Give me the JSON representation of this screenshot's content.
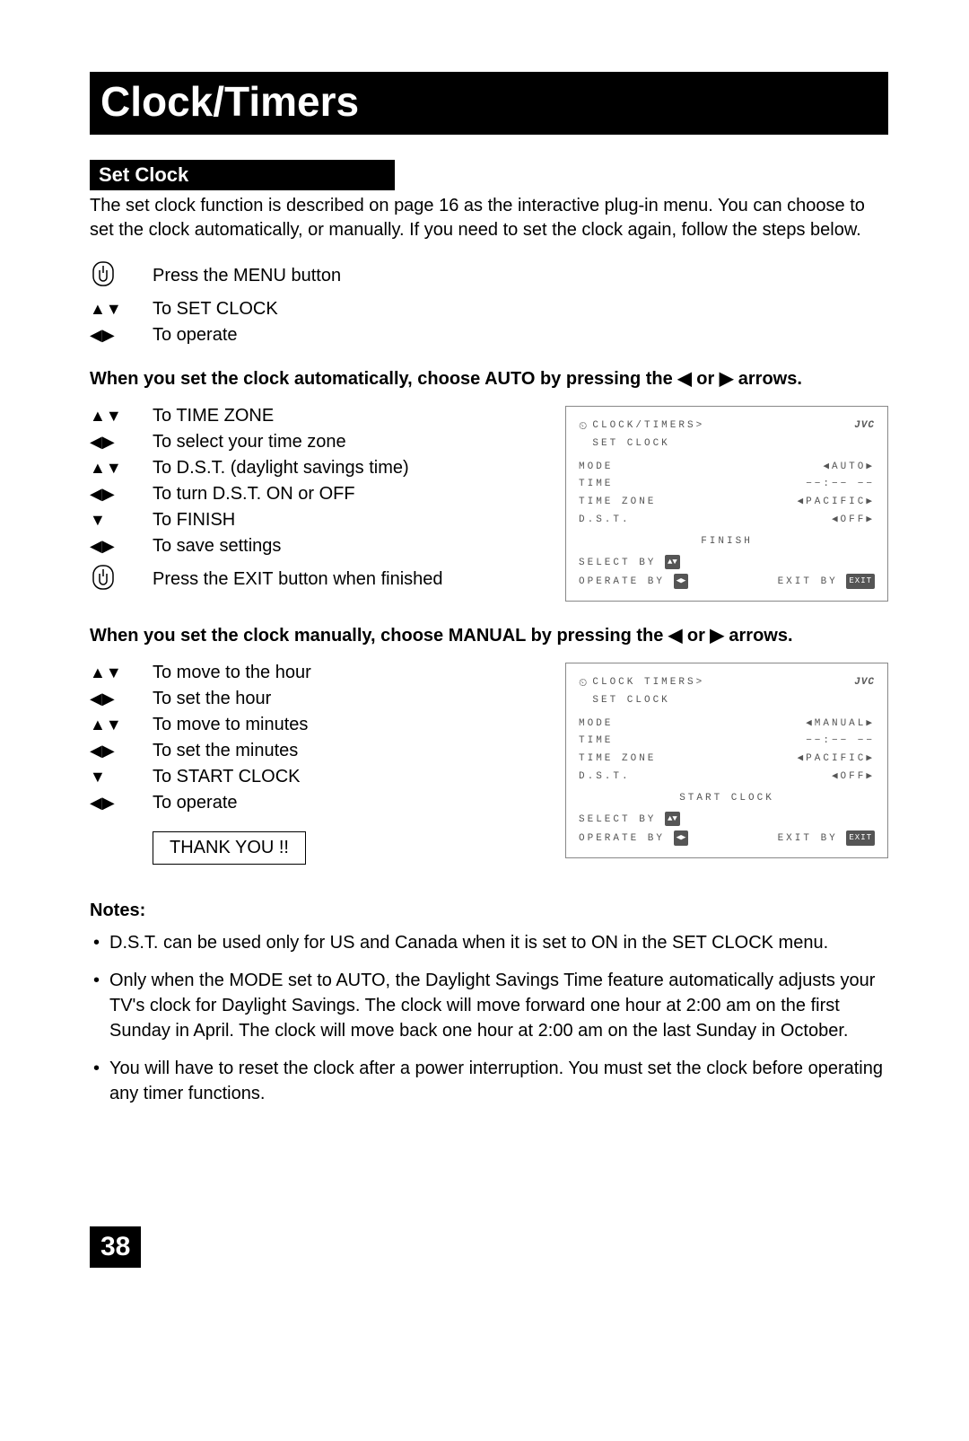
{
  "title": "Clock/Timers",
  "section": "Set Clock",
  "intro": "The set clock function is described on page 16 as the interactive plug-in menu. You can choose to set the clock automatically, or manually. If you need to set the clock again, follow the steps below.",
  "initial_steps": [
    {
      "icon": "hand",
      "text_pre": "Press the M",
      "text_sc": "ENU",
      "text_post": " button"
    },
    {
      "icon": "updown",
      "text": "To SET CLOCK"
    },
    {
      "icon": "leftright",
      "text": "To operate"
    }
  ],
  "auto_heading": "When you set the clock automatically, choose AUTO by pressing the ◀ or ▶ arrows.",
  "auto_steps": [
    {
      "icon": "updown",
      "text": "To TIME ZONE"
    },
    {
      "icon": "leftright",
      "text": "To select your time zone"
    },
    {
      "icon": "updown",
      "text": "To D.S.T. (daylight savings time)"
    },
    {
      "icon": "leftright",
      "text": "To turn D.S.T. ON or OFF"
    },
    {
      "icon": "down",
      "text": "To FINISH"
    },
    {
      "icon": "leftright",
      "text": "To save settings"
    },
    {
      "icon": "hand",
      "text_pre": "Press the E",
      "text_sc": "XIT",
      "text_post": " button when finished"
    }
  ],
  "manual_heading": "When you set the clock manually, choose MANUAL by pressing the ◀ or ▶ arrows.",
  "manual_steps": [
    {
      "icon": "updown",
      "text": "To move to the hour"
    },
    {
      "icon": "leftright",
      "text": "To set the hour"
    },
    {
      "icon": "updown",
      "text": "To move to minutes"
    },
    {
      "icon": "leftright",
      "text": "To set the minutes"
    },
    {
      "icon": "down",
      "text": "To START CLOCK"
    },
    {
      "icon": "leftright",
      "text": "To operate"
    }
  ],
  "thank_you": "THANK YOU !!",
  "osd1": {
    "breadcrumb": "CLOCK/TIMERS>",
    "subtitle": "SET CLOCK",
    "brand": "JVC",
    "rows": [
      {
        "label": "MODE",
        "value": "◀AUTO▶"
      },
      {
        "label": "TIME",
        "value": "−−:−− −−"
      },
      {
        "label": "TIME ZONE",
        "value": "◀PACIFIC▶"
      },
      {
        "label": "D.S.T.",
        "value": "◀OFF▶"
      }
    ],
    "center": "FINISH",
    "select": "SELECT  BY",
    "operate": "OPERATE BY",
    "exit": "EXIT BY"
  },
  "osd2": {
    "breadcrumb": "CLOCK TIMERS>",
    "subtitle": "SET CLOCK",
    "brand": "JVC",
    "rows": [
      {
        "label": "MODE",
        "value": "◀MANUAL▶"
      },
      {
        "label": "TIME",
        "value": "−−:−− −−"
      },
      {
        "label": "TIME ZONE",
        "value": "◀PACIFIC▶"
      },
      {
        "label": "D.S.T.",
        "value": "◀OFF▶"
      }
    ],
    "center": "START CLOCK",
    "select": "SELECT  BY",
    "operate": "OPERATE BY",
    "exit": "EXIT BY"
  },
  "notes_heading": "Notes:",
  "notes": [
    "D.S.T. can be used only for US and Canada when it is set to ON in the SET CLOCK menu.",
    "Only when the MODE set to AUTO, the Daylight Savings Time feature automatically adjusts your TV's clock for Daylight Savings. The clock will move forward one hour at 2:00 am on the first Sunday in April. The clock will move back one hour at 2:00 am on the last Sunday in October.",
    "You will have to reset the clock after a power interruption. You must set the clock before operating any timer functions."
  ],
  "page_number": "38",
  "glyphs": {
    "updown": "▲▼",
    "leftright": "◀▶",
    "down": "▼",
    "ud_badge": "▲▼",
    "lr_badge": "◀▶",
    "exit_badge": "EXIT"
  }
}
